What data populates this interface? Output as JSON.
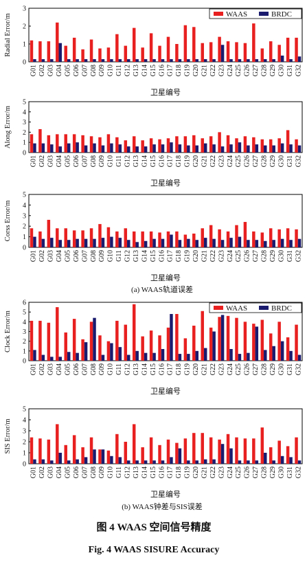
{
  "chart_data": [
    {
      "type": "bar",
      "ylabel": "Radial Error/m",
      "xlabel": "卫星编号",
      "legend": "upper right",
      "ylim": [
        0,
        3
      ],
      "yticks": [
        0,
        1,
        2,
        3
      ],
      "categories": [
        "G01",
        "G02",
        "G03",
        "G04",
        "G05",
        "G06",
        "G07",
        "G08",
        "G09",
        "G10",
        "G11",
        "G12",
        "G13",
        "G14",
        "G15",
        "G16",
        "G17",
        "G18",
        "G19",
        "G20",
        "G21",
        "G22",
        "G23",
        "G24",
        "G25",
        "G26",
        "G27",
        "G28",
        "G29",
        "G30",
        "G31",
        "G32"
      ],
      "series": [
        {
          "name": "WAAS",
          "color": "#e8201f",
          "values": [
            1.2,
            1.15,
            1.15,
            2.2,
            0.9,
            1.35,
            0.7,
            1.25,
            0.75,
            0.8,
            1.55,
            0.9,
            1.9,
            0.8,
            1.6,
            0.9,
            1.4,
            1.0,
            2.05,
            1.95,
            1.05,
            1.1,
            1.4,
            1.15,
            1.1,
            1.05,
            2.15,
            0.75,
            1.15,
            0.95,
            1.35,
            1.35
          ]
        },
        {
          "name": "BRDC",
          "color": "#1a1a6e",
          "values": [
            0.15,
            0.15,
            0.15,
            1.05,
            0.15,
            0.15,
            0.15,
            0.15,
            0.15,
            0.15,
            0.15,
            0.15,
            0.15,
            0.15,
            0.15,
            0.15,
            0.15,
            0.15,
            0.15,
            0.15,
            0.15,
            0.15,
            0.95,
            0.15,
            0.15,
            0.15,
            0.15,
            0.15,
            0.15,
            0.35,
            0.15,
            0.3
          ]
        }
      ]
    },
    {
      "type": "bar",
      "ylabel": "Along Error/m",
      "xlabel": "卫星编号",
      "ylim": [
        0,
        5
      ],
      "yticks": [
        0,
        1,
        2,
        3,
        4,
        5
      ],
      "categories": [
        "G01",
        "G02",
        "G03",
        "G04",
        "G05",
        "G06",
        "G07",
        "G08",
        "G09",
        "G10",
        "G11",
        "G12",
        "G13",
        "G14",
        "G15",
        "G16",
        "G17",
        "G18",
        "G19",
        "G20",
        "G21",
        "G22",
        "G23",
        "G24",
        "G25",
        "G26",
        "G27",
        "G28",
        "G29",
        "G30",
        "G31",
        "G32"
      ],
      "series": [
        {
          "color": "#e8201f",
          "values": [
            1.8,
            2.3,
            1.7,
            1.8,
            1.8,
            1.8,
            1.7,
            1.6,
            1.5,
            1.8,
            1.5,
            1.2,
            1.6,
            1.2,
            1.4,
            1.3,
            1.4,
            1.6,
            1.6,
            1.7,
            1.4,
            1.6,
            2.0,
            1.7,
            1.4,
            1.6,
            1.5,
            1.3,
            1.3,
            1.4,
            2.2,
            1.3
          ]
        },
        {
          "color": "#1a1a6e",
          "values": [
            0.9,
            0.9,
            0.8,
            0.6,
            0.9,
            1.0,
            0.7,
            0.9,
            0.7,
            0.9,
            0.8,
            0.6,
            0.6,
            0.6,
            0.8,
            0.8,
            1.0,
            0.8,
            0.7,
            0.7,
            0.9,
            0.8,
            0.6,
            0.8,
            1.0,
            0.7,
            0.8,
            0.7,
            0.7,
            0.9,
            0.8,
            0.7
          ]
        }
      ]
    },
    {
      "type": "bar",
      "ylabel": "Corss Error/m",
      "xlabel": "卫星编号",
      "ylim": [
        0,
        5
      ],
      "yticks": [
        0,
        1,
        2,
        3,
        4,
        5
      ],
      "categories": [
        "G01",
        "G02",
        "G03",
        "G04",
        "G05",
        "G06",
        "G07",
        "G08",
        "G09",
        "G10",
        "G11",
        "G12",
        "G13",
        "G14",
        "G15",
        "G16",
        "G17",
        "G18",
        "G19",
        "G20",
        "G21",
        "G22",
        "G23",
        "G24",
        "G25",
        "G26",
        "G27",
        "G28",
        "G29",
        "G30",
        "G31",
        "G32"
      ],
      "series": [
        {
          "color": "#e8201f",
          "values": [
            1.8,
            1.5,
            2.6,
            1.8,
            1.8,
            1.6,
            1.6,
            1.8,
            2.2,
            1.9,
            1.5,
            1.8,
            1.5,
            1.5,
            1.5,
            1.4,
            1.5,
            1.5,
            1.2,
            1.3,
            1.8,
            2.1,
            1.7,
            1.5,
            2.1,
            2.4,
            1.5,
            1.4,
            1.8,
            1.7,
            1.8,
            1.7
          ]
        },
        {
          "color": "#1a1a6e",
          "values": [
            1.0,
            0.8,
            0.9,
            0.7,
            0.7,
            0.8,
            0.8,
            0.8,
            0.9,
            1.0,
            0.9,
            0.7,
            0.5,
            0.6,
            0.8,
            0.8,
            1.2,
            0.7,
            0.8,
            0.7,
            0.9,
            0.8,
            0.7,
            0.9,
            1.0,
            0.7,
            0.7,
            0.6,
            0.7,
            0.8,
            0.7,
            0.8
          ]
        }
      ]
    },
    {
      "type": "bar",
      "ylabel": "Clock Error/m",
      "xlabel": "卫星编号",
      "legend": "upper right",
      "ylim": [
        0,
        6
      ],
      "yticks": [
        0,
        1,
        2,
        3,
        4,
        5,
        6
      ],
      "categories": [
        "G01",
        "G02",
        "G03",
        "G04",
        "G05",
        "G06",
        "G07",
        "G08",
        "G09",
        "G10",
        "G11",
        "G12",
        "G13",
        "G14",
        "G15",
        "G16",
        "G17",
        "G18",
        "G19",
        "G20",
        "G21",
        "G22",
        "G23",
        "G24",
        "G25",
        "G26",
        "G27",
        "G28",
        "G29",
        "G30",
        "G31",
        "G32"
      ],
      "series": [
        {
          "name": "WAAS",
          "color": "#e8201f",
          "values": [
            4.1,
            4.1,
            3.9,
            5.5,
            2.9,
            4.3,
            2.2,
            4.0,
            2.6,
            2.0,
            4.1,
            3.7,
            5.8,
            2.5,
            3.1,
            2.6,
            3.4,
            4.8,
            2.3,
            3.6,
            5.1,
            3.4,
            4.5,
            4.6,
            4.4,
            4.0,
            3.8,
            4.2,
            2.8,
            4.0,
            2.4,
            3.7
          ]
        },
        {
          "name": "BRDC",
          "color": "#1a1a6e",
          "values": [
            1.1,
            0.6,
            0.4,
            0.4,
            0.9,
            0.8,
            1.9,
            4.4,
            0.6,
            1.8,
            1.4,
            0.6,
            1.0,
            0.8,
            0.8,
            1.2,
            4.8,
            0.7,
            0.7,
            1.0,
            1.3,
            3.0,
            4.7,
            1.2,
            0.7,
            0.8,
            3.5,
            1.1,
            1.5,
            2.0,
            1.0,
            0.6
          ]
        }
      ]
    },
    {
      "type": "bar",
      "ylabel": "SIS Error/m",
      "xlabel": "卫星编号",
      "ylim": [
        0,
        5
      ],
      "yticks": [
        0,
        1,
        2,
        3,
        4,
        5
      ],
      "categories": [
        "G01",
        "G02",
        "G03",
        "G04",
        "G05",
        "G06",
        "G07",
        "G08",
        "G09",
        "G10",
        "G11",
        "G12",
        "G13",
        "G14",
        "G15",
        "G16",
        "G17",
        "G18",
        "G19",
        "G20",
        "G21",
        "G22",
        "G23",
        "G24",
        "G25",
        "G26",
        "G27",
        "G28",
        "G29",
        "G30",
        "G31",
        "G32"
      ],
      "series": [
        {
          "color": "#e8201f",
          "values": [
            2.4,
            2.3,
            2.2,
            3.6,
            1.7,
            2.6,
            1.5,
            2.4,
            1.3,
            1.2,
            2.7,
            2.0,
            3.6,
            1.5,
            2.4,
            1.7,
            2.2,
            1.9,
            2.3,
            2.8,
            2.8,
            2.4,
            2.2,
            2.7,
            2.4,
            2.3,
            2.3,
            3.3,
            1.5,
            2.1,
            1.6,
            2.4
          ]
        },
        {
          "color": "#1a1a6e",
          "values": [
            0.4,
            0.4,
            0.3,
            1.0,
            0.3,
            0.4,
            0.6,
            1.3,
            1.3,
            0.7,
            0.6,
            0.3,
            0.3,
            0.3,
            0.3,
            0.3,
            0.6,
            1.4,
            0.3,
            0.3,
            0.4,
            0.4,
            1.8,
            1.4,
            0.3,
            0.3,
            0.3,
            1.0,
            0.3,
            0.7,
            0.6,
            0.3
          ]
        }
      ]
    }
  ],
  "captions": {
    "caption_a": "(a) WAAS轨道误差",
    "caption_b": "(b) WAAS钟差与SIS误差",
    "figure_title_cn": "图 4    WAAS 空间信号精度",
    "figure_title_en": "Fig. 4    WAAS SISURE Accuracy"
  }
}
